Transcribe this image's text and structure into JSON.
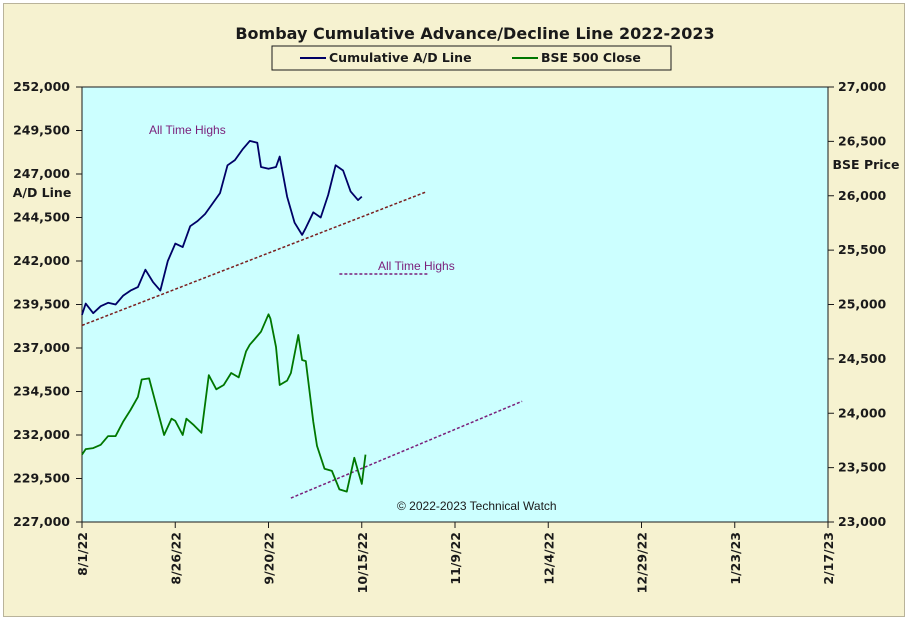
{
  "chart_data": {
    "type": "line",
    "title": "Bombay Cumulative Advance/Decline Line 2022-2023",
    "ylabel_left": "A/D Line",
    "ylabel_right": "BSE Price",
    "copyright": "© 2022-2023 Technical Watch",
    "legend": [
      "Cumulative A/D Line",
      "BSE 500 Close"
    ],
    "x_ticks": [
      "8/1/22",
      "8/26/22",
      "9/20/22",
      "10/15/22",
      "11/9/22",
      "12/4/22",
      "12/29/22",
      "1/23/23",
      "2/17/23"
    ],
    "x_tick_days": [
      0,
      25,
      50,
      75,
      100,
      125,
      150,
      175,
      200
    ],
    "xlim_days": [
      0,
      200
    ],
    "y_left_ticks": [
      "252,000",
      "249,500",
      "247,000",
      "244,500",
      "242,000",
      "239,500",
      "237,000",
      "234,500",
      "232,000",
      "229,500",
      "227,000"
    ],
    "y_left_lim": [
      227000,
      252000
    ],
    "y_right_ticks": [
      "27,000",
      "26,500",
      "26,000",
      "25,500",
      "25,000",
      "24,500",
      "24,000",
      "23,500",
      "23,000"
    ],
    "y_right_lim": [
      23000,
      27000
    ],
    "annotations": [
      {
        "text": "All Time Highs",
        "series": "Cumulative A/D Line"
      },
      {
        "text": "All Time Highs",
        "series": "BSE 500 Close"
      }
    ],
    "colors": {
      "ad_line": "#000066",
      "bse": "#007700",
      "trend": "#7a1f1f",
      "trend_bse": "#7a1f7a",
      "plot_bg": "#ccffff",
      "frame_bg": "#f6f2d0"
    },
    "series": [
      {
        "name": "Cumulative A/D Line",
        "axis": "left",
        "days": [
          0,
          1,
          3,
          5,
          7,
          9,
          11,
          13,
          15,
          17,
          19,
          21,
          23,
          25,
          27,
          29,
          31,
          33,
          35,
          37,
          39,
          41,
          43,
          45,
          47,
          48,
          50,
          52,
          53,
          55,
          57,
          59,
          60,
          62,
          64,
          66,
          68,
          70,
          72,
          74,
          75
        ],
        "values": [
          238900,
          239550,
          239000,
          239400,
          239600,
          239500,
          240000,
          240300,
          240500,
          241500,
          240800,
          240300,
          242000,
          243000,
          242800,
          244000,
          244300,
          244700,
          245300,
          245900,
          247500,
          247800,
          248400,
          248900,
          248800,
          247400,
          247300,
          247400,
          248000,
          245700,
          244200,
          243500,
          243900,
          244800,
          244500,
          245800,
          247500,
          247200,
          246000,
          245500,
          245700
        ]
      },
      {
        "name": "BSE 500 Close",
        "axis": "right",
        "days": [
          0,
          1,
          3,
          5,
          7,
          9,
          11,
          13,
          15,
          16,
          18,
          20,
          22,
          24,
          25,
          27,
          28,
          30,
          32,
          34,
          36,
          38,
          40,
          42,
          44,
          45,
          46,
          48,
          50,
          50.5,
          52,
          53,
          55,
          56,
          58,
          59,
          60,
          62,
          63,
          65,
          67,
          69,
          71,
          73,
          74,
          75,
          76
        ],
        "values": [
          23620,
          23670,
          23680,
          23710,
          23790,
          23790,
          23920,
          24030,
          24150,
          24310,
          24320,
          24060,
          23800,
          23950,
          23930,
          23800,
          23950,
          23890,
          23820,
          24350,
          24220,
          24260,
          24370,
          24330,
          24570,
          24630,
          24670,
          24750,
          24910,
          24870,
          24610,
          24260,
          24300,
          24370,
          24720,
          24490,
          24480,
          23920,
          23700,
          23490,
          23470,
          23300,
          23280,
          23590,
          23470,
          23350,
          23620
        ]
      }
    ],
    "trendlines": [
      {
        "series": "Cumulative A/D Line",
        "axis": "left",
        "from": [
          0,
          238300
        ],
        "to": [
          92,
          245950
        ]
      },
      {
        "series": "BSE 500 Close",
        "axis": "right",
        "from": [
          56,
          23220
        ],
        "to": [
          118,
          24110
        ]
      },
      {
        "series": "BSE 500 Close",
        "axis": "right",
        "from": [
          69,
          25280
        ],
        "to": [
          93,
          25280
        ]
      }
    ]
  }
}
